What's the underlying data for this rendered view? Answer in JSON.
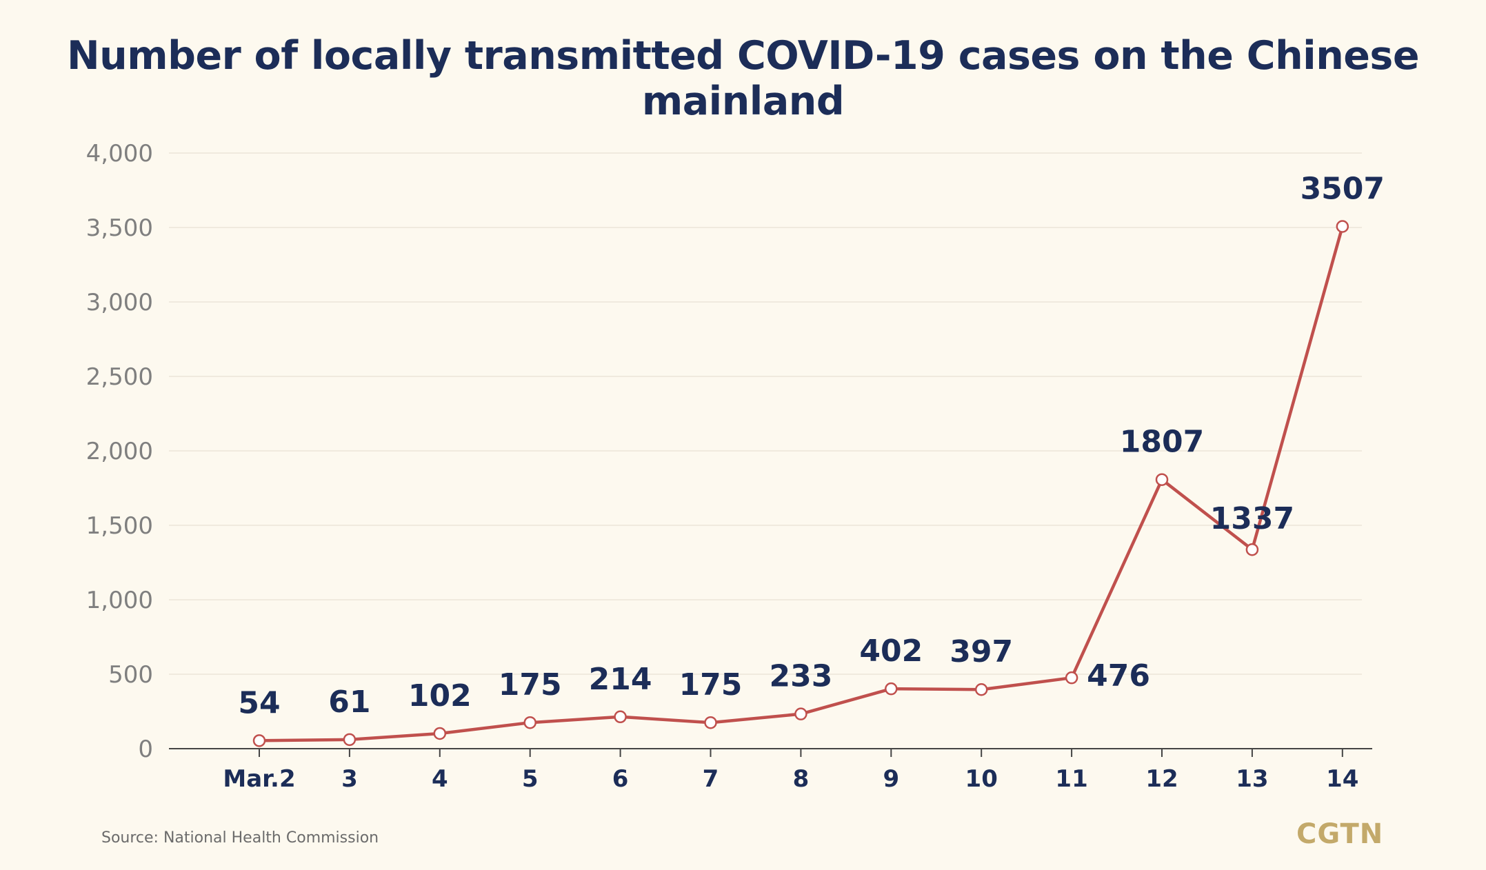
{
  "title": "Number of locally transmitted COVID-19 cases on the Chinese mainland",
  "source": "Source: National Health Commission",
  "logo": "CGTN",
  "colors": {
    "background": "#fdf9ef",
    "line": "#c0504d",
    "title": "#1c2d58",
    "label": "#1c2d58",
    "axis_text": "#7f7f7f",
    "grid": "#ebe5d8",
    "logo": "#c3a96a"
  },
  "chart_data": {
    "type": "line",
    "title": "Number of locally transmitted COVID-19 cases on the Chinese mainland",
    "xlabel": "",
    "ylabel": "",
    "categories": [
      "Mar.2",
      "3",
      "4",
      "5",
      "6",
      "7",
      "8",
      "9",
      "10",
      "11",
      "12",
      "13",
      "14"
    ],
    "series": [
      {
        "values": [
          54,
          61,
          102,
          175,
          214,
          175,
          233,
          402,
          397,
          476,
          1807,
          1337,
          3507
        ]
      }
    ],
    "data_labels": [
      "54",
      "61",
      "102",
      "175",
      "214",
      "175",
      "233",
      "402",
      "397",
      "476",
      "1807",
      "1337",
      "3507"
    ],
    "y_ticks": [
      0,
      500,
      1000,
      1500,
      2000,
      2500,
      3000,
      3500,
      4000
    ],
    "y_tick_labels": [
      "0",
      "500",
      "1,000",
      "1,500",
      "2,000",
      "2,500",
      "3,000",
      "3,500",
      "4,000"
    ],
    "ylim": [
      0,
      4000
    ],
    "grid": true,
    "legend": "none"
  }
}
